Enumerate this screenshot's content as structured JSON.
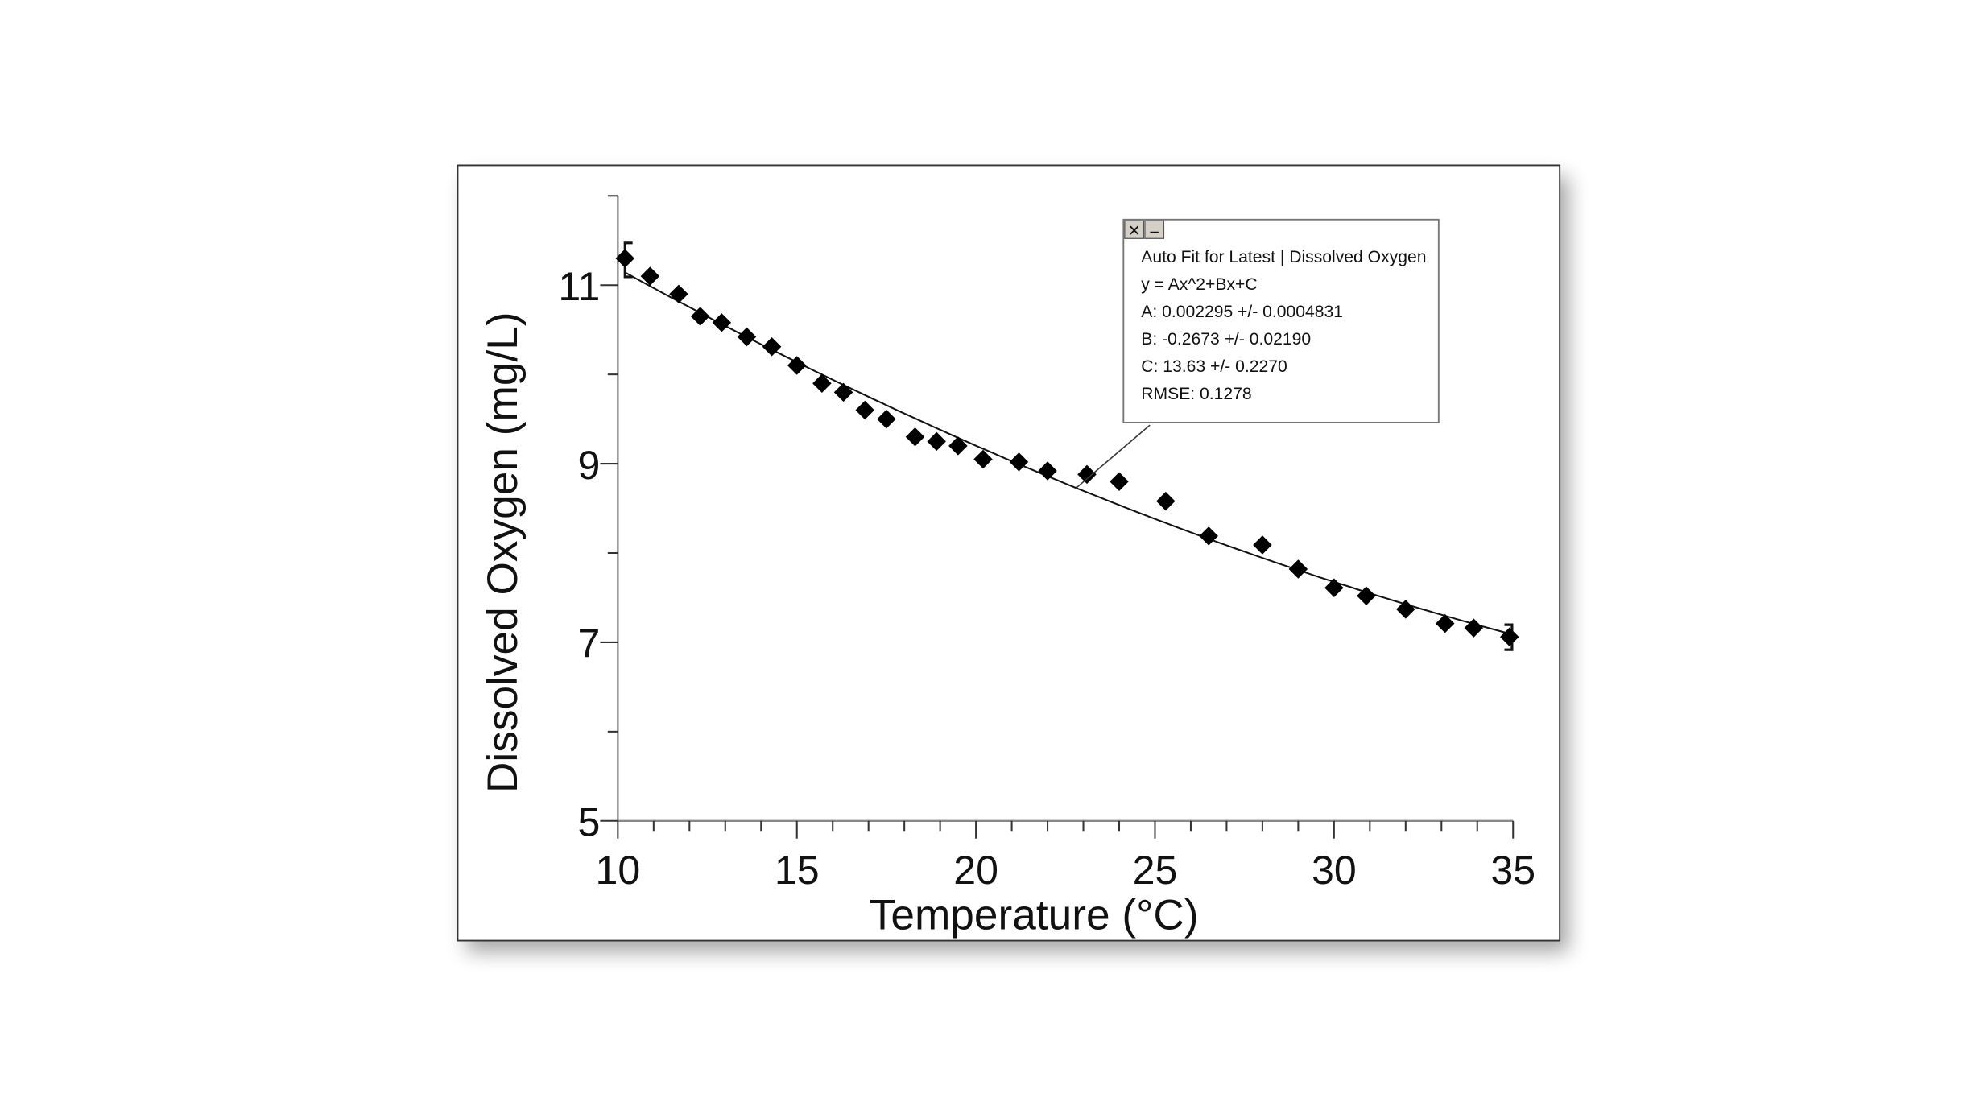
{
  "chart_data": {
    "type": "scatter",
    "xlabel": "Temperature (°C)",
    "ylabel": "Dissolved Oxygen (mg/L)",
    "xlim": [
      10,
      35
    ],
    "ylim": [
      5,
      12
    ],
    "x_ticks": [
      10,
      15,
      20,
      25,
      30,
      35
    ],
    "y_ticks": [
      5,
      7,
      9,
      11
    ],
    "grid": false,
    "marker": "diamond",
    "marker_color": "#000000",
    "points": [
      [
        10.2,
        11.3
      ],
      [
        10.9,
        11.1
      ],
      [
        11.7,
        10.9
      ],
      [
        12.3,
        10.65
      ],
      [
        12.9,
        10.58
      ],
      [
        13.6,
        10.42
      ],
      [
        14.3,
        10.31
      ],
      [
        15.0,
        10.1
      ],
      [
        15.7,
        9.9
      ],
      [
        16.3,
        9.8
      ],
      [
        16.9,
        9.6
      ],
      [
        17.5,
        9.5
      ],
      [
        18.3,
        9.3
      ],
      [
        18.9,
        9.25
      ],
      [
        19.5,
        9.2
      ],
      [
        20.2,
        9.05
      ],
      [
        21.2,
        9.02
      ],
      [
        22.0,
        8.92
      ],
      [
        23.1,
        8.88
      ],
      [
        24.0,
        8.8
      ],
      [
        25.3,
        8.58
      ],
      [
        26.5,
        8.19
      ],
      [
        28.0,
        8.09
      ],
      [
        29.0,
        7.82
      ],
      [
        30.0,
        7.61
      ],
      [
        30.9,
        7.52
      ],
      [
        32.0,
        7.37
      ],
      [
        33.1,
        7.21
      ],
      [
        33.9,
        7.16
      ],
      [
        34.9,
        7.06
      ]
    ],
    "fit": {
      "A": 0.002295,
      "B": -0.2673,
      "C": 13.63,
      "range": [
        10.2,
        34.9
      ]
    },
    "annotation": {
      "close_label": "✕",
      "minimize_label": "–",
      "lines": [
        "Auto Fit for  Latest | Dissolved Oxygen",
        "y = Ax^2+Bx+C",
        "A: 0.002295 +/- 0.0004831",
        "B: -0.2673 +/- 0.02190",
        "C: 13.63 +/- 0.2270",
        "RMSE: 0.1278"
      ],
      "anchor_x": 22.8
    }
  }
}
